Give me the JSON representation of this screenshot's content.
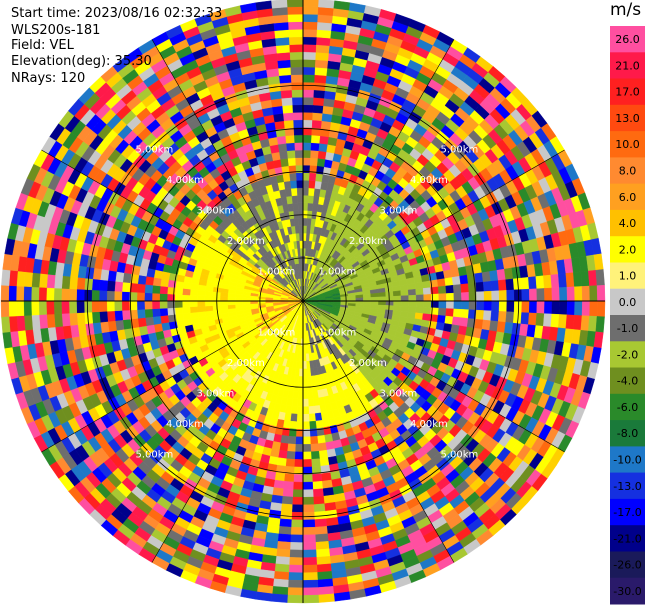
{
  "header": {
    "start_time": "Start time: 2023/08/16 02:32:33",
    "instrument": "WLS200s-181",
    "field": "Field: VEL",
    "elevation": "Elevation(deg): 35.30",
    "nrays": "NRays: 120"
  },
  "colorbar": {
    "unit": "m/s",
    "ticks": [
      "26.0",
      "21.0",
      "17.0",
      "13.0",
      "10.0",
      "8.0",
      "6.0",
      "4.0",
      "2.0",
      "1.0",
      "0.0",
      "-1.0",
      "-2.0",
      "-4.0",
      "-6.0",
      "-8.0",
      "-10.0",
      "-13.0",
      "-17.0",
      "-21.0",
      "-26.0",
      "-30.0"
    ],
    "colors": [
      "#ff4fa0",
      "#ff1a4a",
      "#ff2020",
      "#ff4a10",
      "#ff6a10",
      "#ff8a30",
      "#ffa020",
      "#ffc000",
      "#ffff00",
      "#fff27a",
      "#c8c8c8",
      "#6e6e6e",
      "#a8c832",
      "#6f8f1f",
      "#2a8a2a",
      "#1a7a3a",
      "#1e78c8",
      "#1530e0",
      "#0000ff",
      "#00008b",
      "#1a1a5a",
      "#2a1a6a"
    ]
  },
  "chart_data": {
    "type": "heatmap",
    "projection": "polar PPI",
    "field": "VEL",
    "units": "m/s",
    "nrays": 120,
    "range_rings_km": [
      1.0,
      2.0,
      3.0,
      4.0,
      5.0
    ],
    "ring_labels": [
      "1.00km",
      "2.00km",
      "3.00km",
      "4.00km",
      "5.00km"
    ],
    "max_range_km": 7.0,
    "color_scale_min": -30.0,
    "color_scale_max": 26.0,
    "grid": true
  }
}
